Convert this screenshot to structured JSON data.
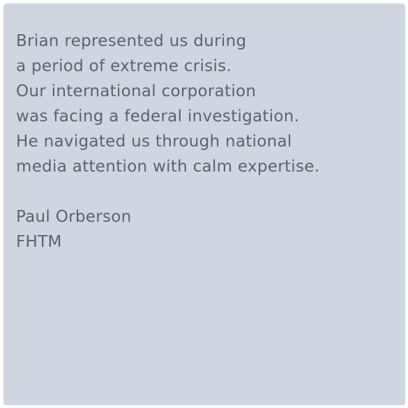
{
  "testimonial": {
    "quote_lines": [
      "Brian represented us during",
      "a period of extreme crisis.",
      "Our international corporation",
      "was facing a federal investigation.",
      "He navigated us through national",
      "media attention with calm expertise."
    ],
    "author_name": "Paul Orberson",
    "author_company": "FHTM"
  },
  "colors": {
    "card_background": "#cfd6e0",
    "text": "#5d636b"
  }
}
